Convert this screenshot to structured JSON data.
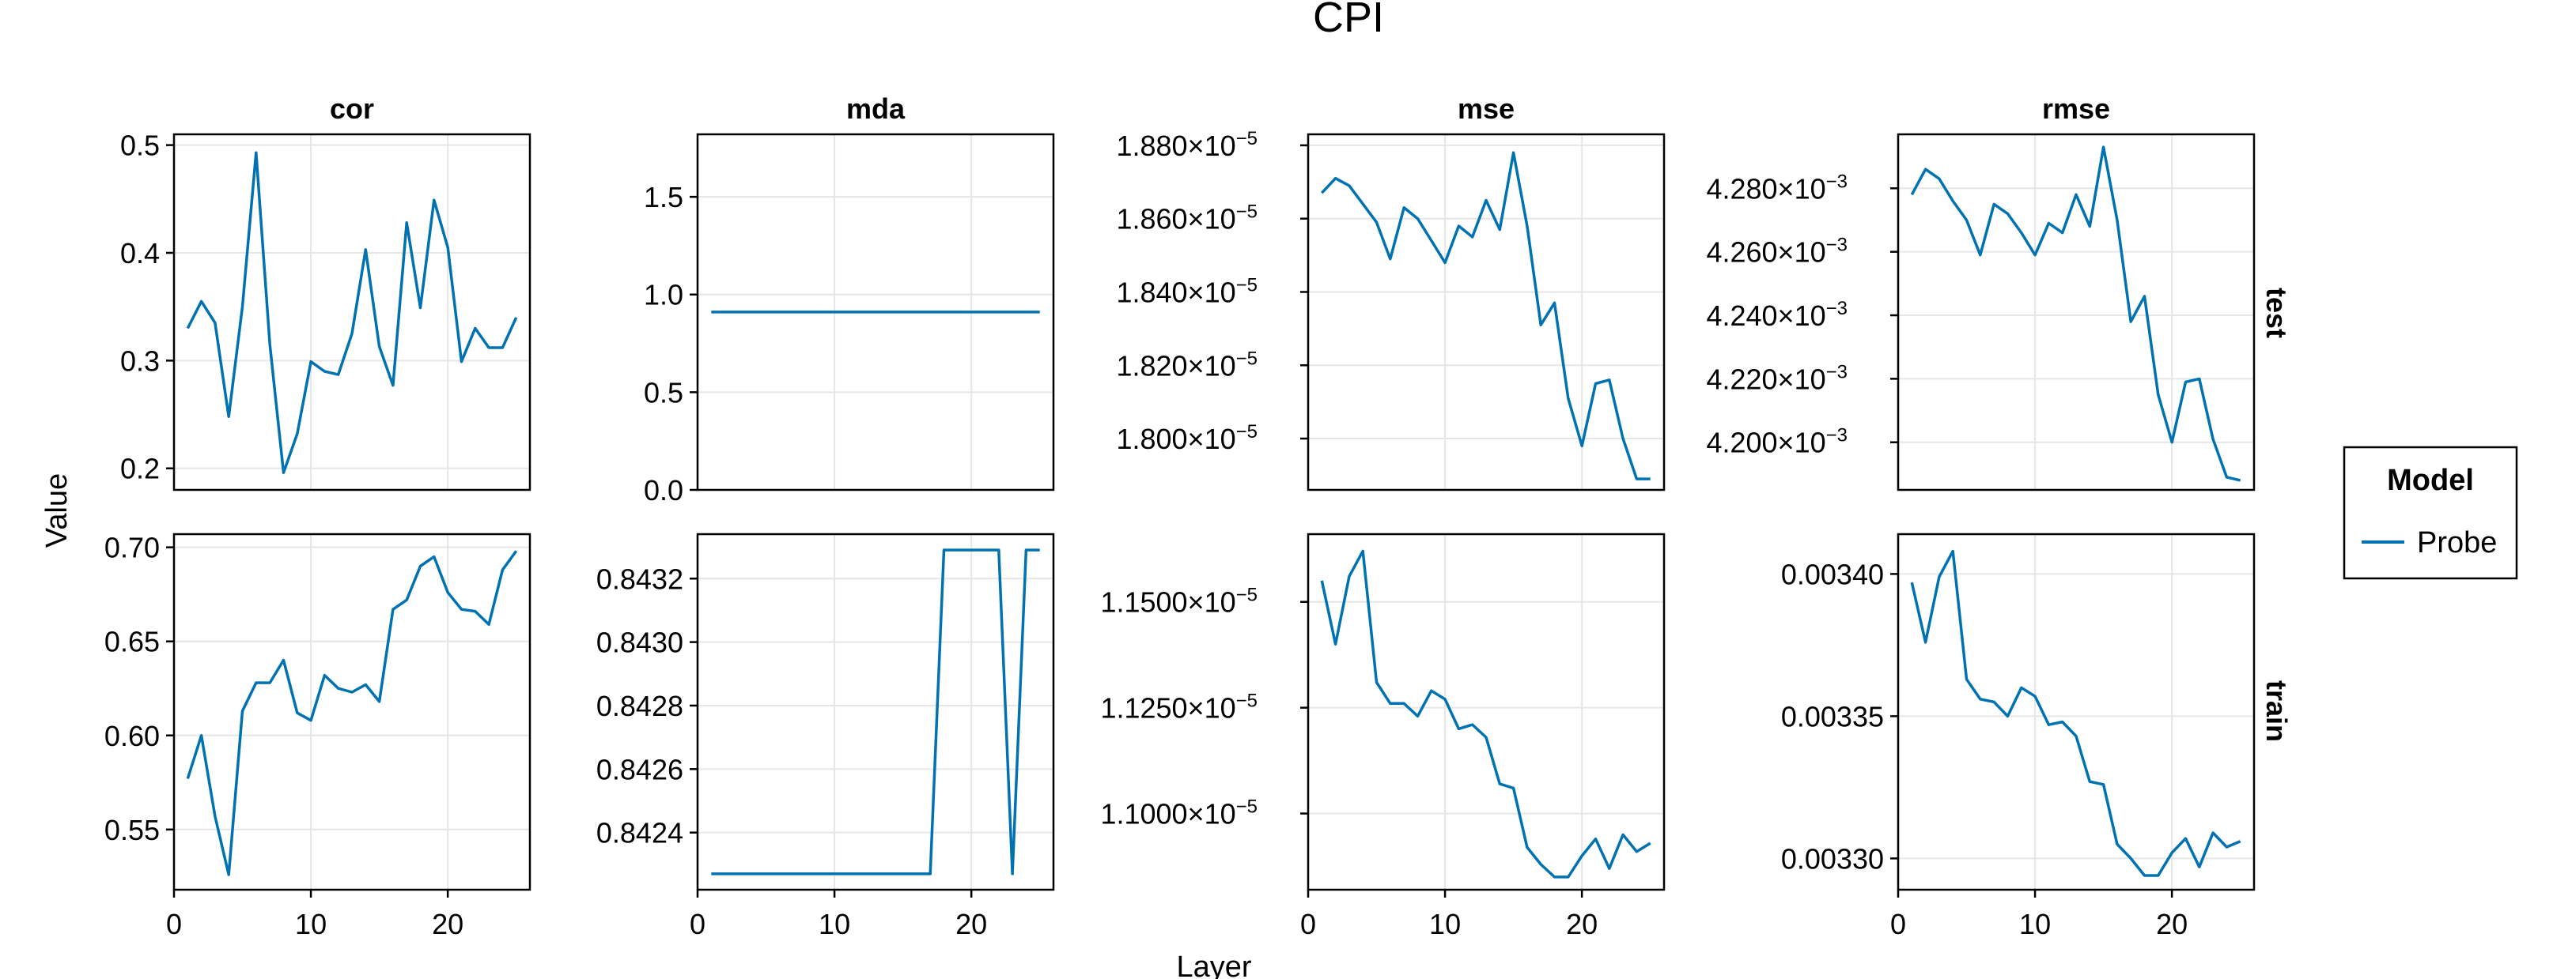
{
  "figure": {
    "title": "CPI",
    "xlabel": "Layer",
    "ylabel": "Value",
    "series_color": "#0072b2"
  },
  "legend": {
    "title": "Model",
    "entries": [
      {
        "label": "Probe",
        "color": "#0072b2"
      }
    ],
    "placement": "right"
  },
  "chart_data": [
    {
      "type": "line",
      "title": "cor",
      "row": "test",
      "x": [
        1,
        2,
        3,
        4,
        5,
        6,
        7,
        8,
        9,
        10,
        11,
        12,
        13,
        14,
        15,
        16,
        17,
        18,
        19,
        20,
        21,
        22,
        23,
        24,
        25
      ],
      "series": [
        {
          "name": "Probe",
          "values": [
            0.33,
            0.355,
            0.335,
            0.248,
            0.35,
            0.493,
            0.315,
            0.196,
            0.232,
            0.299,
            0.29,
            0.287,
            0.325,
            0.403,
            0.313,
            0.277,
            0.428,
            0.349,
            0.449,
            0.405,
            0.299,
            0.33,
            0.312,
            0.312,
            0.34
          ]
        }
      ],
      "xlim": [
        0,
        26
      ],
      "ylim": [
        0.18,
        0.51
      ],
      "xticks": [],
      "xtick_labels": [],
      "yticks": [
        0.2,
        0.3,
        0.4,
        0.5
      ],
      "ytick_labels": [
        "0.2",
        "0.3",
        "0.4",
        "0.5"
      ],
      "grid": true
    },
    {
      "type": "line",
      "title": "mda",
      "row": "test",
      "x": [
        1,
        2,
        3,
        4,
        5,
        6,
        7,
        8,
        9,
        10,
        11,
        12,
        13,
        14,
        15,
        16,
        17,
        18,
        19,
        20,
        21,
        22,
        23,
        24,
        25
      ],
      "series": [
        {
          "name": "Probe",
          "values": [
            0.9103,
            0.9103,
            0.9103,
            0.9103,
            0.9103,
            0.9103,
            0.9103,
            0.9103,
            0.9103,
            0.9103,
            0.9103,
            0.9103,
            0.9103,
            0.9103,
            0.9103,
            0.9103,
            0.9103,
            0.9103,
            0.9103,
            0.9103,
            0.9103,
            0.9103,
            0.9103,
            0.9103,
            0.9103
          ]
        }
      ],
      "xlim": [
        0,
        26
      ],
      "ylim": [
        0,
        1.82
      ],
      "xticks": [],
      "xtick_labels": [],
      "yticks": [
        0.0,
        0.5,
        1.0,
        1.5
      ],
      "ytick_labels": [
        "0.0",
        "0.5",
        "1.0",
        "1.5"
      ],
      "grid": true
    },
    {
      "type": "line",
      "title": "mse",
      "row": "test",
      "x": [
        1,
        2,
        3,
        4,
        5,
        6,
        7,
        8,
        9,
        10,
        11,
        12,
        13,
        14,
        15,
        16,
        17,
        18,
        19,
        20,
        21,
        22,
        23,
        24,
        25
      ],
      "series": [
        {
          "name": "Probe",
          "values": [
            1.867e-05,
            1.871e-05,
            1.869e-05,
            1.864e-05,
            1.859e-05,
            1.849e-05,
            1.863e-05,
            1.86e-05,
            1.854e-05,
            1.848e-05,
            1.858e-05,
            1.855e-05,
            1.865e-05,
            1.857e-05,
            1.878e-05,
            1.858e-05,
            1.831e-05,
            1.837e-05,
            1.811e-05,
            1.798e-05,
            1.815e-05,
            1.816e-05,
            1.8e-05,
            1.789e-05,
            1.789e-05
          ]
        }
      ],
      "xlim": [
        0,
        26
      ],
      "ylim": [
        1.786e-05,
        1.883e-05
      ],
      "xticks": [],
      "xtick_labels": [],
      "yticks": [
        1.8e-05,
        1.82e-05,
        1.84e-05,
        1.86e-05,
        1.88e-05
      ],
      "ytick_labels": [
        "1.800×10",
        "1.820×10",
        "1.840×10",
        "1.860×10",
        "1.880×10"
      ],
      "ytick_exponent": "−5",
      "grid": true
    },
    {
      "type": "line",
      "title": "rmse",
      "row": "test",
      "x": [
        1,
        2,
        3,
        4,
        5,
        6,
        7,
        8,
        9,
        10,
        11,
        12,
        13,
        14,
        15,
        16,
        17,
        18,
        19,
        20,
        21,
        22,
        23,
        24,
        25
      ],
      "series": [
        {
          "name": "Probe",
          "values": [
            0.004278,
            0.004286,
            0.004283,
            0.004276,
            0.00427,
            0.004259,
            0.004275,
            0.004272,
            0.004266,
            0.004259,
            0.004269,
            0.004266,
            0.004278,
            0.004268,
            0.004293,
            0.00427,
            0.004238,
            0.004246,
            0.004215,
            0.0042,
            0.004219,
            0.00422,
            0.004201,
            0.004189,
            0.004188
          ]
        }
      ],
      "xlim": [
        0,
        26
      ],
      "ylim": [
        0.004185,
        0.004297
      ],
      "xticks": [],
      "xtick_labels": [],
      "yticks": [
        0.0042,
        0.00422,
        0.00424,
        0.00426,
        0.00428
      ],
      "ytick_labels": [
        "4.200×10",
        "4.220×10",
        "4.240×10",
        "4.260×10",
        "4.280×10"
      ],
      "ytick_exponent": "−3",
      "grid": true
    },
    {
      "type": "line",
      "title": "",
      "row": "train",
      "x": [
        1,
        2,
        3,
        4,
        5,
        6,
        7,
        8,
        9,
        10,
        11,
        12,
        13,
        14,
        15,
        16,
        17,
        18,
        19,
        20,
        21,
        22,
        23,
        24,
        25
      ],
      "series": [
        {
          "name": "Probe",
          "values": [
            0.577,
            0.6,
            0.557,
            0.526,
            0.613,
            0.628,
            0.628,
            0.64,
            0.612,
            0.608,
            0.632,
            0.625,
            0.623,
            0.627,
            0.618,
            0.667,
            0.672,
            0.69,
            0.695,
            0.676,
            0.667,
            0.666,
            0.659,
            0.688,
            0.698
          ]
        }
      ],
      "xlim": [
        0,
        26
      ],
      "ylim": [
        0.518,
        0.707
      ],
      "xticks": [
        0,
        10,
        20
      ],
      "xtick_labels": [
        "0",
        "10",
        "20"
      ],
      "yticks": [
        0.55,
        0.6,
        0.65,
        0.7
      ],
      "ytick_labels": [
        "0.55",
        "0.60",
        "0.65",
        "0.70"
      ],
      "grid": true
    },
    {
      "type": "line",
      "title": "",
      "row": "train",
      "x": [
        1,
        2,
        3,
        4,
        5,
        6,
        7,
        8,
        9,
        10,
        11,
        12,
        13,
        14,
        15,
        16,
        17,
        18,
        19,
        20,
        21,
        22,
        23,
        24,
        25
      ],
      "series": [
        {
          "name": "Probe",
          "values": [
            0.84227,
            0.84227,
            0.84227,
            0.84227,
            0.84227,
            0.84227,
            0.84227,
            0.84227,
            0.84227,
            0.84227,
            0.84227,
            0.84227,
            0.84227,
            0.84227,
            0.84227,
            0.84227,
            0.84227,
            0.84329,
            0.84329,
            0.84329,
            0.84329,
            0.84329,
            0.84227,
            0.84329,
            0.84329
          ]
        }
      ],
      "xlim": [
        0,
        26
      ],
      "ylim": [
        0.84222,
        0.84334
      ],
      "xticks": [
        0,
        10,
        20
      ],
      "xtick_labels": [
        "0",
        "10",
        "20"
      ],
      "yticks": [
        0.8424,
        0.8426,
        0.8428,
        0.843,
        0.8432
      ],
      "ytick_labels": [
        "0.8424",
        "0.8426",
        "0.8428",
        "0.8430",
        "0.8432"
      ],
      "grid": true
    },
    {
      "type": "line",
      "title": "",
      "row": "train",
      "x": [
        1,
        2,
        3,
        4,
        5,
        6,
        7,
        8,
        9,
        10,
        11,
        12,
        13,
        14,
        15,
        16,
        17,
        18,
        19,
        20,
        21,
        22,
        23,
        24,
        25
      ],
      "series": [
        {
          "name": "Probe",
          "values": [
            1.155e-05,
            1.14e-05,
            1.156e-05,
            1.162e-05,
            1.131e-05,
            1.126e-05,
            1.126e-05,
            1.123e-05,
            1.129e-05,
            1.127e-05,
            1.12e-05,
            1.121e-05,
            1.118e-05,
            1.107e-05,
            1.106e-05,
            1.092e-05,
            1.088e-05,
            1.085e-05,
            1.085e-05,
            1.09e-05,
            1.094e-05,
            1.087e-05,
            1.095e-05,
            1.091e-05,
            1.093e-05
          ]
        }
      ],
      "xlim": [
        0,
        26
      ],
      "ylim": [
        1.082e-05,
        1.166e-05
      ],
      "xticks": [
        0,
        10,
        20
      ],
      "xtick_labels": [
        "0",
        "10",
        "20"
      ],
      "yticks": [
        1.1e-05,
        1.125e-05,
        1.15e-05
      ],
      "ytick_labels": [
        "1.1000×10",
        "1.1250×10",
        "1.1500×10"
      ],
      "ytick_exponent": "−5",
      "grid": true
    },
    {
      "type": "line",
      "title": "",
      "row": "train",
      "x": [
        1,
        2,
        3,
        4,
        5,
        6,
        7,
        8,
        9,
        10,
        11,
        12,
        13,
        14,
        15,
        16,
        17,
        18,
        19,
        20,
        21,
        22,
        23,
        24,
        25
      ],
      "series": [
        {
          "name": "Probe",
          "values": [
            0.003397,
            0.003376,
            0.003399,
            0.003408,
            0.003363,
            0.003356,
            0.003355,
            0.00335,
            0.00336,
            0.003357,
            0.003347,
            0.003348,
            0.003343,
            0.003327,
            0.003326,
            0.003305,
            0.0033,
            0.003294,
            0.003294,
            0.003302,
            0.003307,
            0.003297,
            0.003309,
            0.003304,
            0.003306
          ]
        }
      ],
      "xlim": [
        0,
        26
      ],
      "ylim": [
        0.003289,
        0.003414
      ],
      "xticks": [
        0,
        10,
        20
      ],
      "xtick_labels": [
        "0",
        "10",
        "20"
      ],
      "yticks": [
        0.0033,
        0.00335,
        0.0034
      ],
      "ytick_labels": [
        "0.00330",
        "0.00335",
        "0.00340"
      ],
      "grid": true
    }
  ],
  "row_labels": [
    "test",
    "train"
  ]
}
